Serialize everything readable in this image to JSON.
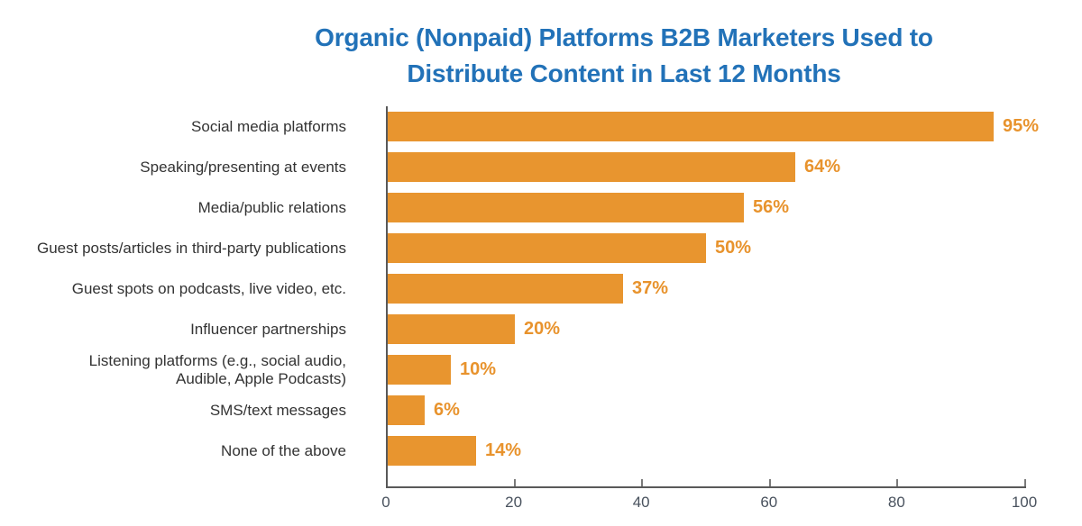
{
  "chart_data": {
    "type": "bar",
    "orientation": "horizontal",
    "title": "Organic (Nonpaid) Platforms B2B Marketers Used to Distribute Content in Last 12 Months",
    "title_lines": [
      "Organic (Nonpaid) Platforms B2B Marketers Used to",
      "Distribute Content in Last 12 Months"
    ],
    "categories": [
      "Social media platforms",
      "Speaking/presenting at events",
      "Media/public relations",
      "Guest posts/articles in third-party publications",
      "Guest spots on podcasts, live video, etc.",
      "Influencer partnerships",
      "Listening platforms (e.g., social audio, Audible, Apple Podcasts)",
      "SMS/text messages",
      "None of the above"
    ],
    "category_label_lines": [
      [
        "Social media platforms"
      ],
      [
        "Speaking/presenting at events"
      ],
      [
        "Media/public relations"
      ],
      [
        "Guest posts/articles in third-party publications"
      ],
      [
        "Guest spots on podcasts, live video, etc."
      ],
      [
        "Influencer partnerships"
      ],
      [
        "Listening platforms (e.g., social audio,",
        "Audible, Apple Podcasts)"
      ],
      [
        "SMS/text messages"
      ],
      [
        "None of the above"
      ]
    ],
    "values": [
      95,
      64,
      56,
      50,
      37,
      20,
      10,
      6,
      14
    ],
    "value_labels": [
      "95%",
      "64%",
      "56%",
      "50%",
      "37%",
      "20%",
      "10%",
      "6%",
      "14%"
    ],
    "xlabel": "",
    "ylabel": "",
    "xlim": [
      0,
      100
    ],
    "xticks": [
      0,
      20,
      40,
      60,
      80,
      100
    ],
    "grid": false,
    "legend": false,
    "colors": {
      "bar": "#E8952F",
      "value_label": "#E8932D",
      "title": "#2272B8",
      "category_label": "#333333",
      "tick_label": "#49525E",
      "axis_line": "#595959",
      "tick_mark": "#7A7A7A",
      "background": "#FFFFFF"
    }
  }
}
